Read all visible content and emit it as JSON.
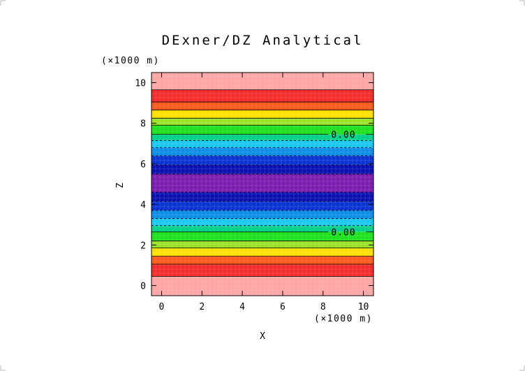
{
  "chart_data": {
    "type": "heatmap",
    "title": "DExner/DZ Analytical",
    "xlabel": "X",
    "ylabel": "Z",
    "x_unit": "(×1000 m)",
    "y_unit": "(×1000 m)",
    "xlim": [
      -0.5,
      10.5
    ],
    "ylim": [
      -0.5,
      10.5
    ],
    "x_ticks": [
      "0",
      "2",
      "4",
      "6",
      "8",
      "10"
    ],
    "y_ticks": [
      "0",
      "2",
      "4",
      "6",
      "8",
      "10"
    ],
    "grid": false,
    "bands": [
      {
        "z0": -0.5,
        "z1": 0.45,
        "color": "#ffa6a6"
      },
      {
        "z0": 0.45,
        "z1": 1.05,
        "color": "#f42c2c"
      },
      {
        "z0": 1.05,
        "z1": 1.45,
        "color": "#ff5a1c"
      },
      {
        "z0": 1.45,
        "z1": 1.85,
        "color": "#ffe000"
      },
      {
        "z0": 1.85,
        "z1": 2.2,
        "color": "#9ae22a"
      },
      {
        "z0": 2.2,
        "z1": 2.65,
        "color": "#1ee01e"
      },
      {
        "z0": 2.65,
        "z1": 2.95,
        "color": "#00d08a"
      },
      {
        "z0": 2.95,
        "z1": 3.3,
        "color": "#19c8f2"
      },
      {
        "z0": 3.3,
        "z1": 3.7,
        "color": "#0b8ee6"
      },
      {
        "z0": 3.7,
        "z1": 4.15,
        "color": "#0a34d2"
      },
      {
        "z0": 4.15,
        "z1": 4.6,
        "color": "#0a10b2"
      },
      {
        "z0": 4.6,
        "z1": 5.5,
        "color": "#7a1cb0"
      },
      {
        "z0": 5.5,
        "z1": 5.95,
        "color": "#0a10b2"
      },
      {
        "z0": 5.95,
        "z1": 6.4,
        "color": "#0a34d2"
      },
      {
        "z0": 6.4,
        "z1": 6.8,
        "color": "#0b8ee6"
      },
      {
        "z0": 6.8,
        "z1": 7.15,
        "color": "#19c8f2"
      },
      {
        "z0": 7.15,
        "z1": 7.45,
        "color": "#00d08a"
      },
      {
        "z0": 7.45,
        "z1": 7.9,
        "color": "#1ee01e"
      },
      {
        "z0": 7.9,
        "z1": 8.25,
        "color": "#9ae22a"
      },
      {
        "z0": 8.25,
        "z1": 8.65,
        "color": "#ffe000"
      },
      {
        "z0": 8.65,
        "z1": 9.05,
        "color": "#ff5a1c"
      },
      {
        "z0": 9.05,
        "z1": 9.65,
        "color": "#f42c2c"
      },
      {
        "z0": 9.65,
        "z1": 10.5,
        "color": "#ffa6a6"
      }
    ],
    "contours": [
      {
        "z": 0.45,
        "style": "solid"
      },
      {
        "z": 1.05,
        "style": "solid"
      },
      {
        "z": 1.45,
        "style": "solid"
      },
      {
        "z": 1.85,
        "style": "solid"
      },
      {
        "z": 2.2,
        "style": "solid"
      },
      {
        "z": 2.65,
        "style": "solid",
        "label": "0.00"
      },
      {
        "z": 2.95,
        "style": "dashed"
      },
      {
        "z": 3.3,
        "style": "dashed"
      },
      {
        "z": 3.7,
        "style": "dashed"
      },
      {
        "z": 4.15,
        "style": "dashed"
      },
      {
        "z": 4.6,
        "style": "dashed"
      },
      {
        "z": 5.5,
        "style": "dashed"
      },
      {
        "z": 5.95,
        "style": "dashed"
      },
      {
        "z": 6.4,
        "style": "dashed"
      },
      {
        "z": 6.8,
        "style": "dashed"
      },
      {
        "z": 7.15,
        "style": "dashed"
      },
      {
        "z": 7.45,
        "style": "solid",
        "label": "0.00"
      },
      {
        "z": 7.9,
        "style": "solid"
      },
      {
        "z": 8.25,
        "style": "solid"
      },
      {
        "z": 8.65,
        "style": "solid"
      },
      {
        "z": 9.05,
        "style": "solid"
      },
      {
        "z": 9.65,
        "style": "solid"
      }
    ],
    "contour_label_x": 8.4
  }
}
